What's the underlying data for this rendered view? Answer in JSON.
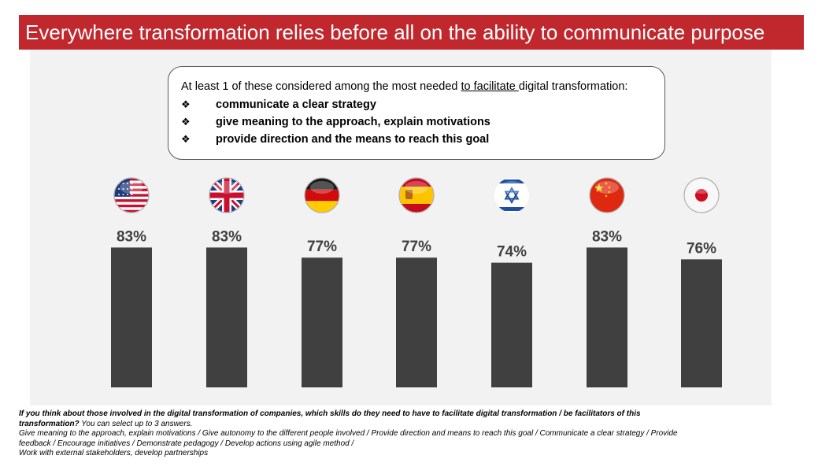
{
  "title": "Everywhere transformation relies before all on the ability to communicate purpose",
  "callout": {
    "intro_before": "At least 1 of these considered among the most needed ",
    "intro_underlined": "to facilitate ",
    "intro_after": "digital transformation:",
    "bullet_glyph": "❖",
    "items": [
      "communicate a clear strategy",
      "give meaning to the approach, explain motivations",
      "provide direction and the means to reach this goal"
    ]
  },
  "chart_data": {
    "type": "bar",
    "categories": [
      "United States",
      "United Kingdom",
      "Germany",
      "Spain",
      "Israel",
      "China",
      "Japan"
    ],
    "category_icons": [
      "us-flag-icon",
      "uk-flag-icon",
      "germany-flag-icon",
      "spain-flag-icon",
      "israel-flag-icon",
      "china-flag-icon",
      "japan-flag-icon"
    ],
    "values": [
      83,
      83,
      77,
      77,
      74,
      83,
      76
    ],
    "value_labels": [
      "83%",
      "83%",
      "77%",
      "77%",
      "74%",
      "83%",
      "76%"
    ],
    "bar_color": "#404040"
  },
  "footnote": {
    "question": "If you think about those involved in the digital transformation of companies, which skills do they need to have to facilitate digital transformation / be facilitators of this transformation?",
    "instruction": " You can select up to 3 answers.",
    "options_line1": "Give meaning to the approach, explain motivations / Give autonomy to the different people involved / Provide direction and means to reach this goal / Communicate a clear strategy / Provide feedback / Encourage initiatives / Demonstrate pedagogy / Develop actions using agile method /",
    "options_line2": "Work with external stakeholders, develop partnerships"
  },
  "colors": {
    "title_bg": "#c0282d",
    "chart_bg": "#f2f2f2",
    "bar": "#404040"
  }
}
